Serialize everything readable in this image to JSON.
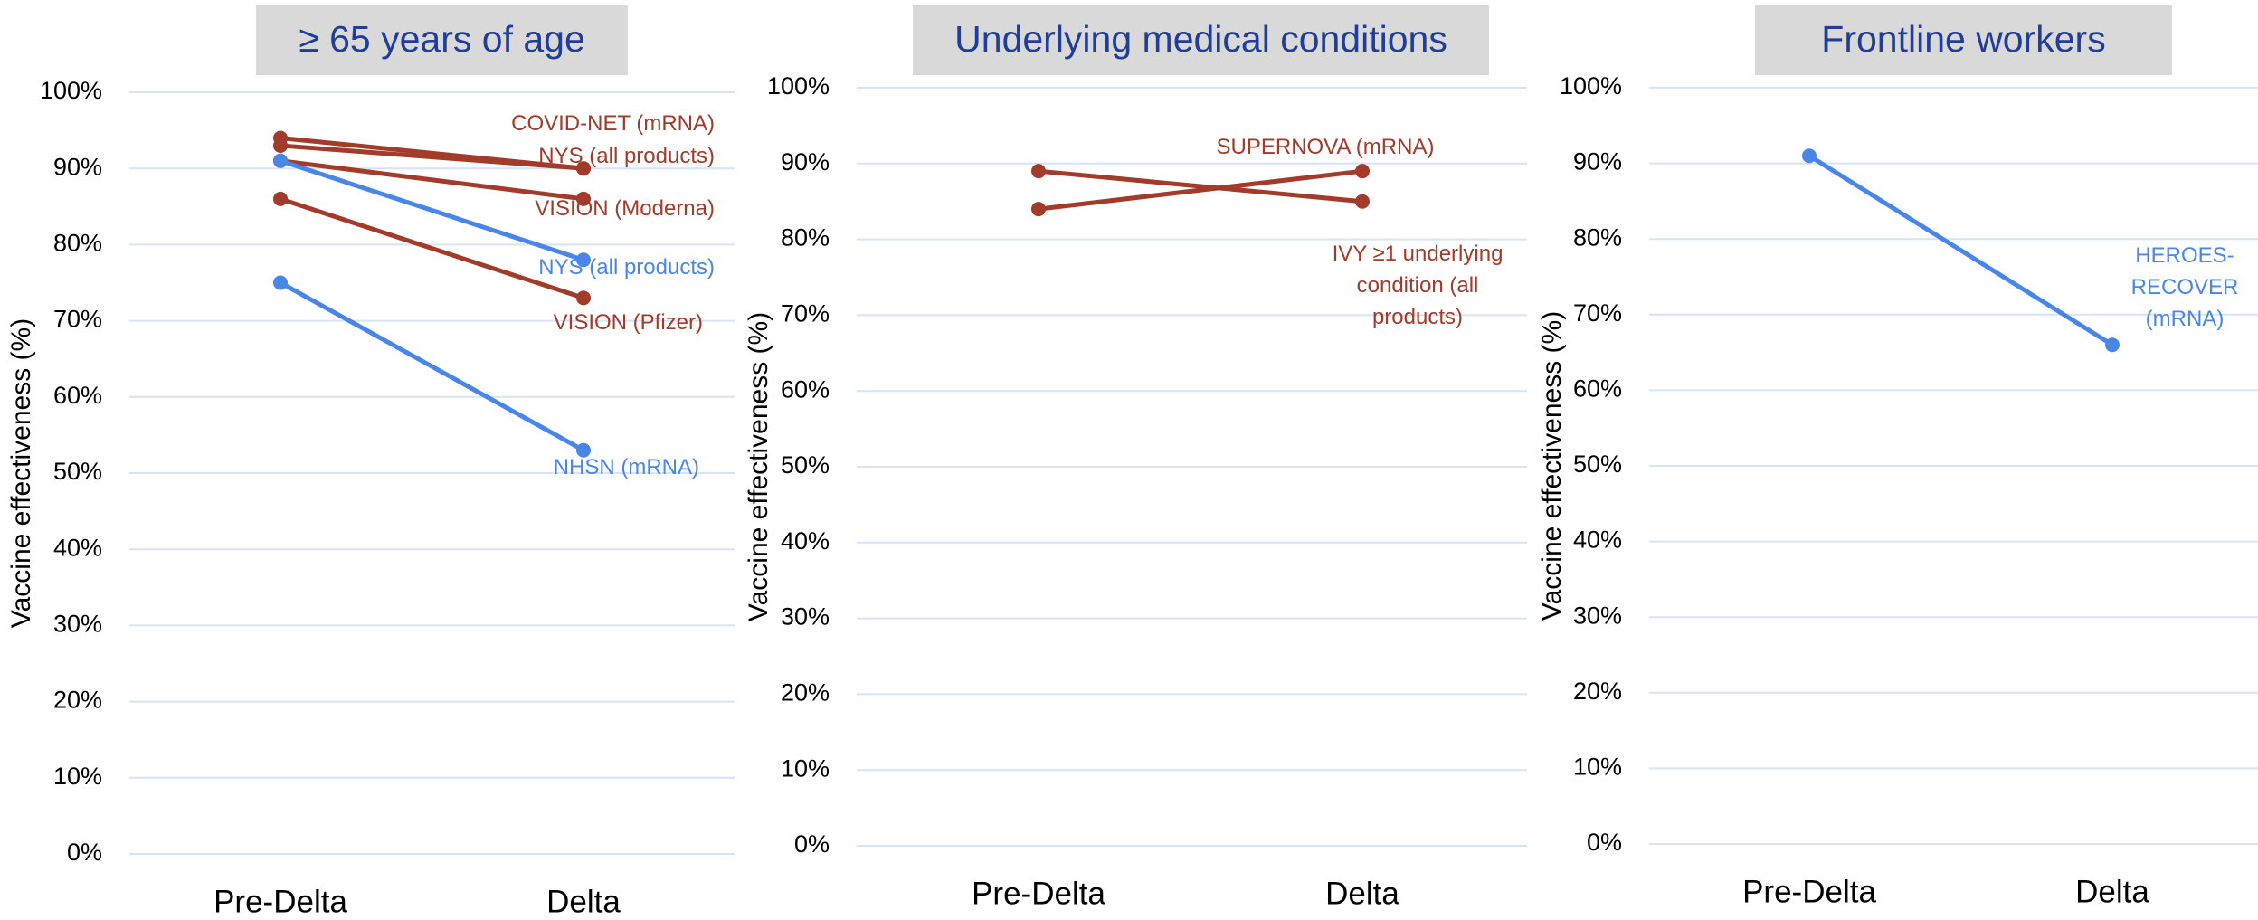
{
  "chart_data": [
    {
      "type": "line",
      "title": "≥ 65 years of age",
      "y_label": "Vaccine effectiveness (%)",
      "categories": [
        "Pre-Delta",
        "Delta"
      ],
      "series": [
        {
          "name": "COVID-NET (mRNA)",
          "color": "#a23b2a",
          "values": [
            94,
            90
          ]
        },
        {
          "name": "NYS (all products)",
          "color": "#a23b2a",
          "values": [
            93,
            90
          ]
        },
        {
          "name": "VISION (Moderna)",
          "color": "#a23b2a",
          "values": [
            91,
            86
          ]
        },
        {
          "name": "NYS (all products)",
          "color": "#4a86e8",
          "values": [
            91,
            78
          ]
        },
        {
          "name": "VISION (Pfizer)",
          "color": "#a23b2a",
          "values": [
            86,
            73
          ]
        },
        {
          "name": "NHSN (mRNA)",
          "color": "#4a86e8",
          "values": [
            75,
            53
          ]
        }
      ],
      "ylim": [
        0,
        100
      ],
      "yticks": [
        {
          "value": 0,
          "label": "0%"
        },
        {
          "value": 10,
          "label": "10%"
        },
        {
          "value": 20,
          "label": "20%"
        },
        {
          "value": 30,
          "label": "30%"
        },
        {
          "value": 40,
          "label": "40%"
        },
        {
          "value": 50,
          "label": "50%"
        },
        {
          "value": 60,
          "label": "60%"
        },
        {
          "value": 70,
          "label": "70%"
        },
        {
          "value": 80,
          "label": "80%"
        },
        {
          "value": 90,
          "label": "90%"
        },
        {
          "value": 100,
          "label": "100%"
        }
      ],
      "grid": true
    },
    {
      "type": "line",
      "title": "Underlying medical conditions",
      "y_label": "Vaccine effectiveness (%)",
      "categories": [
        "Pre-Delta",
        "Delta"
      ],
      "series": [
        {
          "name": "SUPERNOVA (mRNA)",
          "color": "#a23b2a",
          "values": [
            84,
            89
          ]
        },
        {
          "name": "IVY ≥1 underlying condition (all products)",
          "color": "#a23b2a",
          "values": [
            89,
            85
          ]
        }
      ],
      "ylim": [
        0,
        100
      ],
      "yticks": [
        {
          "value": 0,
          "label": "0%"
        },
        {
          "value": 10,
          "label": "10%"
        },
        {
          "value": 20,
          "label": "20%"
        },
        {
          "value": 30,
          "label": "30%"
        },
        {
          "value": 40,
          "label": "40%"
        },
        {
          "value": 50,
          "label": "50%"
        },
        {
          "value": 60,
          "label": "60%"
        },
        {
          "value": 70,
          "label": "70%"
        },
        {
          "value": 80,
          "label": "80%"
        },
        {
          "value": 90,
          "label": "90%"
        },
        {
          "value": 100,
          "label": "100%"
        }
      ],
      "grid": true
    },
    {
      "type": "line",
      "title": "Frontline workers",
      "y_label": "Vaccine effectiveness (%)",
      "categories": [
        "Pre-Delta",
        "Delta"
      ],
      "series": [
        {
          "name": "HEROES-RECOVER (mRNA)",
          "color": "#4a86e8",
          "values": [
            91,
            66
          ]
        }
      ],
      "ylim": [
        0,
        100
      ],
      "yticks": [
        {
          "value": 0,
          "label": "0%"
        },
        {
          "value": 10,
          "label": "10%"
        },
        {
          "value": 20,
          "label": "20%"
        },
        {
          "value": 30,
          "label": "30%"
        },
        {
          "value": 40,
          "label": "40%"
        },
        {
          "value": 50,
          "label": "50%"
        },
        {
          "value": 60,
          "label": "60%"
        },
        {
          "value": 70,
          "label": "70%"
        },
        {
          "value": 80,
          "label": "80%"
        },
        {
          "value": 90,
          "label": "90%"
        },
        {
          "value": 100,
          "label": "100%"
        }
      ],
      "grid": true
    }
  ]
}
